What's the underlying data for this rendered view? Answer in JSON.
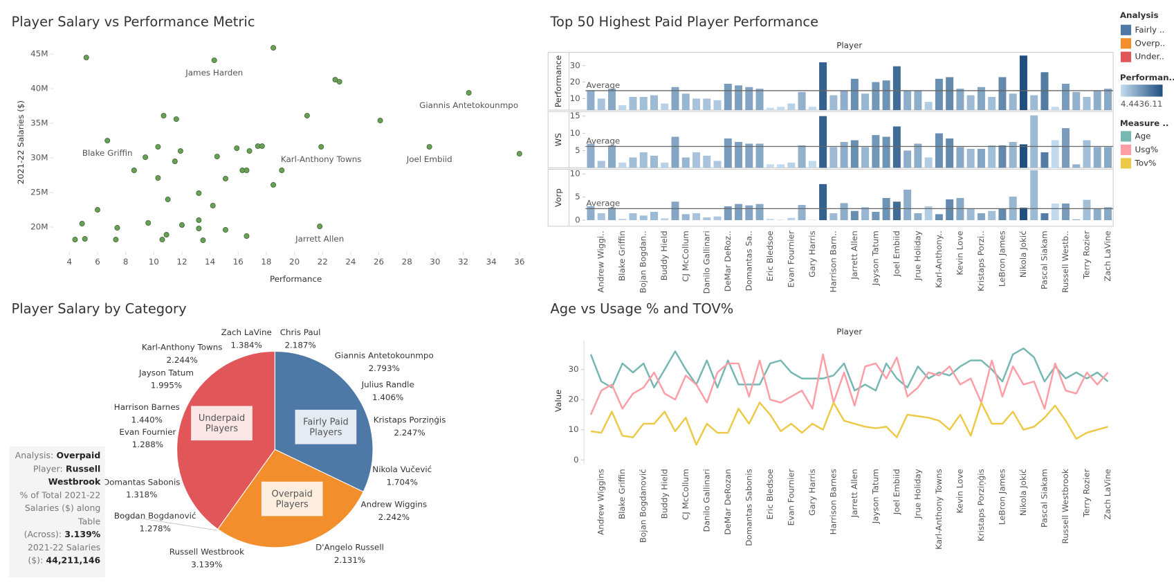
{
  "chart_data": [
    {
      "type": "scatter",
      "title": "Player Salary vs Performance Metric",
      "x_label": "Performance",
      "y_label": "2021-22 Salaries ($)",
      "color": "#6a9f58",
      "x": [
        5.2,
        14.3,
        18.5,
        22.9,
        23.2,
        32.4,
        10.7,
        11.6,
        20.9,
        26.1,
        6.7,
        10.3,
        11.9,
        15.9,
        17.4,
        17.7,
        21.9,
        29.6,
        36.0,
        9.4,
        11.5,
        14.5,
        16.8,
        15.1,
        16.3,
        16.6,
        19.1,
        8.6,
        10.3,
        18.5,
        13.2,
        11.0,
        6.0,
        14.2,
        4.9,
        7.4,
        9.6,
        12.0,
        13.2,
        13.2,
        15.1,
        21.8,
        4.4,
        5.1,
        7.3,
        10.6,
        10.9,
        13.5,
        16.6
      ],
      "values": [
        44500000,
        44100000,
        45900000,
        41300000,
        41000000,
        39400000,
        36100000,
        35600000,
        36100000,
        35400000,
        32500000,
        31600000,
        31000000,
        31400000,
        31700000,
        31700000,
        31600000,
        31600000,
        30600000,
        30100000,
        29500000,
        30200000,
        31000000,
        27000000,
        28200000,
        28200000,
        28200000,
        28200000,
        27100000,
        26100000,
        24900000,
        24000000,
        22500000,
        23100000,
        20500000,
        19900000,
        20600000,
        20300000,
        21000000,
        19800000,
        19600000,
        20100000,
        18200000,
        18300000,
        18200000,
        18200000,
        18900000,
        18100000,
        18700000
      ],
      "labels": [
        null,
        "James Harden",
        null,
        null,
        null,
        "Giannis Antetokounmpo",
        null,
        null,
        null,
        null,
        "Blake Griffin",
        null,
        null,
        null,
        null,
        null,
        "Karl-Anthony Towns",
        "Joel Embiid",
        null,
        null,
        null,
        null,
        null,
        null,
        null,
        null,
        null,
        null,
        null,
        null,
        null,
        null,
        null,
        null,
        null,
        null,
        null,
        null,
        null,
        null,
        null,
        "Jarrett Allen",
        null,
        null,
        null,
        null,
        null,
        null,
        null
      ],
      "xlim": [
        3.6,
        36.6
      ],
      "xticks": [
        4,
        6,
        8,
        10,
        12,
        14,
        16,
        18,
        20,
        22,
        24,
        26,
        28,
        30,
        32,
        34,
        36
      ],
      "ylim": [
        17100000,
        47400000
      ],
      "yticks": [
        {
          "value": 20000000,
          "label": "20M"
        },
        {
          "value": 25000000,
          "label": "25M"
        },
        {
          "value": 30000000,
          "label": "30M"
        },
        {
          "value": 35000000,
          "label": "35M"
        },
        {
          "value": 40000000,
          "label": "40M"
        },
        {
          "value": 45000000,
          "label": "45M"
        }
      ]
    },
    {
      "type": "bar",
      "title": "Top 50 Highest Paid Player Performance",
      "header": "Player",
      "reference_label": "Average",
      "categories": [
        null,
        "Andrew Wiggi..",
        null,
        "Blake Griffin",
        null,
        "Bojan Bogdan..",
        null,
        "Buddy Hield",
        null,
        "CJ McCollum",
        null,
        "Danilo Gallinari",
        null,
        "DeMar DeRoz..",
        null,
        "Domantas Sa..",
        null,
        "Eric Bledsoe",
        null,
        "Evan Fournier",
        null,
        "Gary Harris",
        null,
        "Harrison Barn..",
        null,
        "Jarrett Allen",
        null,
        "Jayson Tatum",
        null,
        "Joel Embiid",
        null,
        "Jrue Holiday",
        null,
        "Karl-Anthony..",
        null,
        "Kevin Love",
        null,
        "Kristaps Porzi..",
        null,
        "LeBron James",
        null,
        "Nikola Jokić",
        null,
        "Pascal Siakam",
        null,
        "Russell Westb..",
        null,
        "Terry Rozier",
        null,
        "Zach LaVine"
      ],
      "panels": [
        {
          "name": "Performance",
          "ylim": [
            3,
            38
          ],
          "yticks": [
            10,
            20,
            30
          ],
          "average": 14.8,
          "values": [
            15,
            10,
            16,
            6,
            11,
            11,
            12,
            7,
            17,
            13,
            10,
            10,
            9,
            19,
            18,
            17,
            16,
            4.4,
            5,
            7,
            14,
            5,
            32,
            12,
            15,
            22,
            13,
            20,
            21,
            29.6,
            15,
            15,
            8,
            22,
            23,
            16,
            12,
            17,
            11,
            23,
            13,
            36.1,
            12,
            26,
            5,
            19,
            14,
            11,
            15,
            16
          ]
        },
        {
          "name": "WS",
          "ylim": [
            0,
            16.3
          ],
          "yticks": [
            5,
            10,
            15
          ],
          "average": 6.2,
          "values": [
            7,
            2,
            6.5,
            1.5,
            3,
            4.5,
            3.5,
            1.5,
            9,
            3,
            4.5,
            3.5,
            2,
            8.5,
            7.5,
            7,
            7,
            1,
            1,
            1.5,
            6.5,
            2,
            15,
            6,
            7.5,
            8,
            6,
            9.5,
            9,
            12,
            5,
            7,
            3,
            10,
            8.5,
            6,
            5.5,
            5.5,
            6.5,
            6.5,
            7.5,
            6.8,
            15.2,
            4.5,
            8,
            11.5,
            1,
            8,
            6,
            6
          ]
        },
        {
          "name": "Vorp",
          "ylim": [
            -1.3,
            11
          ],
          "yticks": [
            0,
            5,
            10
          ],
          "average": 2.5,
          "values": [
            3,
            1.5,
            2.7,
            0.3,
            1.5,
            1,
            1.8,
            0.4,
            4,
            1.3,
            1.5,
            0.6,
            0.8,
            3,
            3.5,
            3.2,
            3.5,
            0.3,
            0.1,
            0.5,
            3.3,
            0.1,
            7.8,
            1.5,
            3.7,
            2,
            2.8,
            1.8,
            4.8,
            4,
            6.6,
            1.5,
            3,
            1.3,
            4.5,
            4.8,
            2.5,
            1.5,
            2,
            2.4,
            5.1,
            2.7,
            10.8,
            1.5,
            3.6,
            3.6,
            0.2,
            4.4,
            2.4,
            2.8
          ]
        }
      ],
      "color_scale": {
        "title": "Performan..",
        "min": 4.44,
        "max": 36.11,
        "colors": [
          "#c5dcef",
          "#1e4f7f"
        ]
      }
    },
    {
      "type": "pie",
      "title": "Player Salary by Category",
      "categories": [
        "Fairly Paid Players",
        "Overpaid Players",
        "Underpaid Players"
      ],
      "values": [
        32.1,
        27.8,
        40.1
      ],
      "colors": [
        "#4e79a7",
        "#f28e2b",
        "#e15759"
      ],
      "legend": {
        "title": "Analysis",
        "labels": [
          "Fairly ..",
          "Overp..",
          "Under.."
        ]
      },
      "annotations": [
        {
          "name": "Zach LaVine",
          "value": 1.384,
          "value_label": "1.384%"
        },
        {
          "name": "Chris Paul",
          "value": 2.187,
          "value_label": "2.187%"
        },
        {
          "name": "Giannis Antetokounmpo",
          "value": 2.793,
          "value_label": "2.793%"
        },
        {
          "name": "Julius Randle",
          "value": 1.406,
          "value_label": "1.406%"
        },
        {
          "name": "Kristaps Porziņģis",
          "value": 2.247,
          "value_label": "2.247%"
        },
        {
          "name": "Nikola Vučević",
          "value": 1.704,
          "value_label": "1.704%"
        },
        {
          "name": "Andrew Wiggins",
          "value": 2.242,
          "value_label": "2.242%"
        },
        {
          "name": "D'Angelo Russell",
          "value": 2.131,
          "value_label": "2.131%"
        },
        {
          "name": "Russell Westbrook",
          "value": 3.139,
          "value_label": "3.139%"
        },
        {
          "name": "Bogdan Bogdanović",
          "value": 1.278,
          "value_label": "1.278%"
        },
        {
          "name": "Domantas Sabonis",
          "value": 1.318,
          "value_label": "1.318%"
        },
        {
          "name": "Evan Fournier",
          "value": 1.288,
          "value_label": "1.288%"
        },
        {
          "name": "Harrison Barnes",
          "value": 1.44,
          "value_label": "1.440%"
        },
        {
          "name": "Jayson Tatum",
          "value": 1.995,
          "value_label": "1.995%"
        },
        {
          "name": "Karl-Anthony Towns",
          "value": 2.244,
          "value_label": "2.244%"
        }
      ],
      "tooltip": [
        {
          "label": "Analysis:",
          "value": "Overpaid"
        },
        {
          "label": "Player:",
          "value": "Russell Westbrook"
        },
        {
          "label": "% of Total 2021-22 Salaries ($) along Table (Across):",
          "value": "3.139%"
        },
        {
          "label": "2021-22 Salaries ($):",
          "value": "44,211,146"
        }
      ]
    },
    {
      "type": "line",
      "title": "Age vs Usage % and TOV%",
      "header": "Player",
      "y_label": "Value",
      "legend_title": "Measure ..",
      "categories": [
        null,
        "Andrew Wiggins",
        null,
        "Blake Griffin",
        null,
        "Bojan Bogdanović",
        null,
        "Buddy Hield",
        null,
        "CJ McCollum",
        null,
        "Danilo Gallinari",
        null,
        "DeMar DeRozan",
        null,
        "Domantas Sabonis",
        null,
        "Eric Bledsoe",
        null,
        "Evan Fournier",
        null,
        "Gary Harris",
        null,
        "Harrison Barnes",
        null,
        "Jarrett Allen",
        null,
        "Jayson Tatum",
        null,
        "Joel Embiid",
        null,
        "Jrue Holiday",
        null,
        "Karl-Anthony Towns",
        null,
        "Kevin Love",
        null,
        "Kristaps Porziņģis",
        null,
        "LeBron James",
        null,
        "Nikola Jokić",
        null,
        "Pascal Siakam",
        null,
        "Russell Westbrook",
        null,
        "Terry Rozier",
        null,
        "Zach LaVine"
      ],
      "ylim": [
        -1.5,
        39.5
      ],
      "yticks": [
        0,
        10,
        20,
        30
      ],
      "series": [
        {
          "name": "Age",
          "color": "#76b7b2",
          "values": [
            35,
            26,
            24,
            32,
            29,
            32,
            24,
            30,
            36,
            30,
            25,
            33,
            24,
            33,
            25,
            25,
            25,
            32,
            33,
            29,
            27,
            27,
            27,
            28,
            32,
            23,
            25,
            23,
            32,
            27,
            24,
            31,
            27,
            29,
            28,
            31,
            33,
            33,
            30,
            26,
            35,
            37,
            34,
            26,
            31,
            27,
            29,
            27,
            29,
            26
          ]
        },
        {
          "name": "Usg%",
          "color": "#ff9da7",
          "values": [
            15,
            23,
            25,
            17,
            22,
            24,
            29,
            22,
            20,
            28,
            25,
            19,
            29,
            32,
            32,
            21,
            33,
            20,
            19,
            21,
            23,
            17,
            35,
            19,
            29,
            18,
            31,
            32,
            27,
            34,
            21,
            24,
            29,
            28,
            31,
            25,
            27,
            19,
            33,
            21,
            31,
            25,
            26,
            17,
            32,
            23,
            22,
            29,
            25,
            29
          ]
        },
        {
          "name": "Tov%",
          "color": "#edc948",
          "values": [
            9.5,
            9,
            16,
            8,
            7.5,
            12,
            12,
            16,
            9.5,
            14,
            5,
            12,
            9,
            9,
            17,
            12,
            19,
            15,
            9.5,
            12,
            9,
            12,
            10,
            19,
            13,
            12,
            11,
            10.5,
            11,
            7.5,
            15,
            14.5,
            14,
            13,
            10,
            15,
            8,
            19,
            12,
            12,
            16,
            10,
            11,
            14,
            18,
            13,
            7,
            9,
            10,
            11
          ]
        }
      ]
    }
  ]
}
